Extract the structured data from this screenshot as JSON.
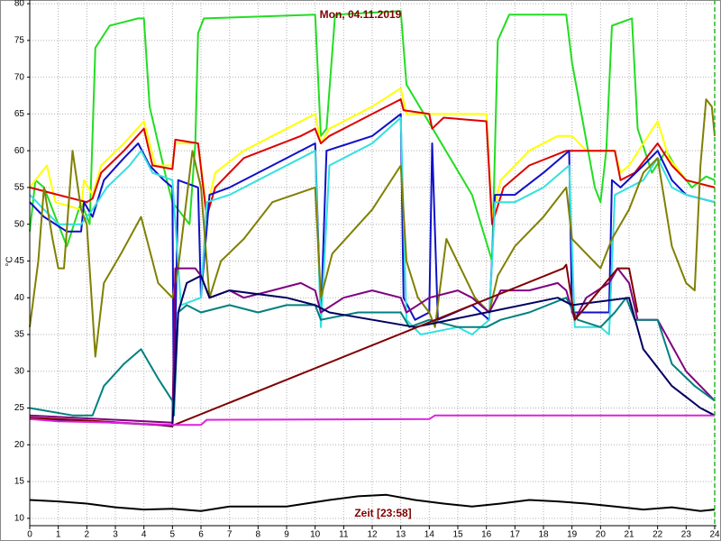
{
  "chart_data": {
    "type": "line",
    "title": "Mon, 04.11.2019",
    "y_label": "°C",
    "annotation": "Zeit [23:58]",
    "xlim": [
      0,
      24
    ],
    "xticks": [
      0,
      1,
      2,
      3,
      4,
      5,
      6,
      7,
      8,
      9,
      10,
      11,
      12,
      13,
      14,
      15,
      16,
      17,
      18,
      19,
      20,
      21,
      22,
      23,
      24
    ],
    "ylim": [
      9,
      80.5
    ],
    "yticks": [
      10,
      15,
      20,
      25,
      30,
      35,
      40,
      45,
      50,
      55,
      60,
      65,
      70,
      75,
      80
    ],
    "grid": true,
    "end_marker_color": "#22bb22",
    "series": [
      {
        "color": "#22dd22",
        "x": [
          0,
          0.2,
          0.5,
          1.3,
          1.8,
          2.1,
          2.3,
          2.8,
          3.8,
          4.0,
          4.2,
          4.8,
          5.0,
          5.6,
          5.8,
          5.9,
          6.1,
          10.0,
          10.2,
          10.4,
          10.7,
          13.0,
          13.2,
          15.5,
          16.2,
          16.4,
          16.8,
          18.8,
          19.0,
          19.8,
          20.0,
          20.2,
          20.4,
          21.1,
          21.3,
          21.8,
          22.3,
          22.6,
          23.2,
          23.7,
          24
        ],
        "values": [
          49,
          56,
          55,
          47,
          53,
          50,
          74,
          77,
          78,
          78,
          66,
          56,
          53,
          50,
          61,
          76,
          78,
          78.5,
          62,
          63,
          78.5,
          79,
          69,
          54,
          45,
          75,
          78.5,
          78.5,
          72,
          55,
          53,
          60,
          77,
          78,
          63,
          57,
          60,
          58,
          55,
          56.5,
          56
        ]
      },
      {
        "color": "#ffff00",
        "x": [
          0,
          0.6,
          0.9,
          1.8,
          1.9,
          2.2,
          2.5,
          3.3,
          4.0,
          4.4,
          5.0,
          5.1,
          5.9,
          6.2,
          6.5,
          7.5,
          9,
          10,
          10.2,
          10.5,
          12,
          13,
          13.2,
          16.0,
          16.2,
          16.5,
          17.5,
          18.5,
          19.0,
          19.5,
          20.5,
          20.7,
          21,
          22.0,
          22.4,
          23,
          24
        ],
        "values": [
          55,
          58,
          53,
          52,
          56,
          54,
          58,
          61,
          64,
          58,
          58,
          61,
          61,
          52,
          57,
          60,
          63,
          65,
          61,
          63,
          66,
          68.5,
          65,
          65,
          51,
          56,
          60,
          62,
          62,
          60,
          60,
          57,
          58,
          64,
          59,
          56,
          55
        ]
      },
      {
        "color": "#dd0000",
        "x": [
          0,
          1,
          2,
          2.2,
          2.5,
          3.3,
          4.0,
          4.3,
          5.0,
          5.1,
          5.9,
          6.2,
          6.5,
          7.5,
          9.5,
          10.0,
          10.2,
          10.5,
          12.0,
          13.0,
          13.1,
          14.0,
          14.1,
          14.5,
          16.0,
          16.2,
          16.6,
          17.5,
          18.8,
          19.2,
          20.5,
          20.7,
          21.2,
          22.0,
          22.5,
          23,
          24
        ],
        "values": [
          55,
          54,
          53,
          53.5,
          57,
          60,
          63,
          58,
          57.5,
          61.5,
          61,
          51,
          55,
          59,
          62,
          63,
          61,
          62,
          65,
          67,
          65.5,
          65,
          63,
          64.5,
          64,
          50,
          55,
          58,
          60,
          60,
          60,
          56,
          57,
          61,
          58,
          56,
          55
        ]
      },
      {
        "color": "#1010c8",
        "x": [
          0,
          0.5,
          1.3,
          1.8,
          1.9,
          2.2,
          2.6,
          3.3,
          3.8,
          4.2,
          4.7,
          5.0,
          5.05,
          5.2,
          5.9,
          6.0,
          6.3,
          7.0,
          8.5,
          10.0,
          10.2,
          10.4,
          12,
          13.0,
          13.1,
          13.5,
          14.0,
          14.1,
          14.3,
          15.5,
          16.1,
          16.3,
          17,
          18,
          18.9,
          19.0,
          20.3,
          20.4,
          20.7,
          21.5,
          22.0,
          22.5,
          23,
          24
        ],
        "values": [
          53,
          51,
          49,
          49,
          53,
          51,
          56,
          59,
          61,
          58,
          56,
          55,
          24,
          56,
          55,
          40,
          54,
          55,
          58,
          61,
          37,
          60,
          62,
          65,
          40,
          37,
          38,
          61,
          37,
          39,
          37,
          54,
          54,
          57,
          60,
          38,
          38,
          56,
          55,
          58,
          60,
          56,
          54,
          53
        ]
      },
      {
        "color": "#33e0e0",
        "x": [
          0,
          1,
          1.8,
          2.2,
          2.7,
          3.5,
          3.9,
          4.3,
          5.0,
          5.3,
          6.0,
          6.2,
          7,
          8.5,
          10.0,
          10.2,
          10.5,
          12,
          13.0,
          13.2,
          13.7,
          15.0,
          15.5,
          16.1,
          16.3,
          17,
          18,
          18.9,
          19.1,
          20,
          20.3,
          20.5,
          21.5,
          22,
          22.5,
          23,
          24
        ],
        "values": [
          54,
          50,
          50,
          52,
          55,
          58,
          60,
          57,
          56,
          39,
          40,
          53,
          54,
          57,
          60,
          36,
          58,
          61,
          64.5,
          37,
          35,
          36,
          35,
          37,
          53,
          53,
          55,
          58,
          36,
          36,
          35,
          54,
          56,
          59,
          55,
          54,
          53
        ]
      },
      {
        "color": "#808000",
        "x": [
          0,
          0.3,
          0.5,
          0.8,
          1.0,
          1.2,
          1.5,
          1.8,
          2.0,
          2.3,
          2.6,
          3.2,
          3.9,
          4.5,
          5.0,
          5.2,
          5.7,
          6.0,
          6.3,
          6.7,
          7.5,
          8.5,
          10.0,
          10.2,
          10.6,
          12,
          13.0,
          13.2,
          13.6,
          14.0,
          14.2,
          14.6,
          15.1,
          15.6,
          16.1,
          16.4,
          17,
          18,
          18.8,
          19.0,
          20,
          20.4,
          21.0,
          21.5,
          22,
          22.5,
          23,
          23.3,
          23.5,
          23.7,
          23.9,
          24
        ],
        "values": [
          36,
          45,
          55,
          48,
          44,
          44,
          60,
          52,
          50,
          32,
          42,
          46,
          51,
          42,
          40,
          44,
          60,
          55,
          40,
          45,
          48,
          53,
          55,
          40,
          46,
          52,
          58,
          45,
          40,
          38,
          36,
          48,
          44,
          40,
          38,
          43,
          47,
          51,
          55,
          48,
          44,
          48,
          52,
          57,
          59,
          47,
          42,
          41,
          58,
          67,
          66,
          62
        ]
      },
      {
        "color": "#800080",
        "x": [
          0,
          2,
          5.0,
          5.1,
          5.8,
          6,
          6.3,
          7,
          7.5,
          8.5,
          9.5,
          10.0,
          10.2,
          11,
          12,
          13,
          13.2,
          14,
          15,
          15.5,
          16.1,
          16.5,
          17.5,
          18.5,
          18.8,
          19.1,
          19.5,
          20.3,
          20.6,
          21.0,
          21.3,
          22,
          23,
          24
        ],
        "values": [
          24,
          23.6,
          23,
          44,
          44,
          43,
          40,
          41,
          40,
          41,
          42,
          41,
          38,
          40,
          41,
          40,
          38,
          40,
          41,
          40,
          38,
          41,
          41,
          42,
          41,
          37,
          40,
          42,
          44,
          42,
          37,
          37,
          30,
          26
        ]
      },
      {
        "color": "#008080",
        "x": [
          0,
          1.5,
          2.2,
          2.6,
          3.3,
          3.9,
          4.5,
          5.0,
          5.05,
          5.2,
          5.5,
          6,
          7,
          8,
          9,
          10,
          10.2,
          11.5,
          13,
          13.3,
          14,
          15,
          16,
          16.5,
          17.5,
          18.8,
          19.2,
          20,
          20.5,
          20.9,
          21.2,
          22,
          22.5,
          23.3,
          24
        ],
        "values": [
          25,
          24,
          24,
          28,
          31,
          33,
          29,
          26,
          24,
          38,
          39,
          38,
          39,
          38,
          39,
          39,
          37,
          38,
          38,
          36,
          37,
          36,
          36,
          37,
          38,
          40,
          37,
          36,
          38,
          40,
          37,
          37,
          31,
          28,
          26
        ]
      },
      {
        "color": "#000060",
        "x": [
          0,
          2,
          4.5,
          5.0,
          5.2,
          5.5,
          6,
          6.3,
          7,
          9,
          10,
          10.5,
          13.5,
          16,
          18.5,
          19,
          21,
          21.5,
          22.5,
          23.5,
          24
        ],
        "values": [
          23.5,
          23.2,
          22.7,
          22.5,
          38,
          42,
          43,
          40,
          41,
          40,
          39,
          38,
          36,
          38,
          40,
          39,
          40,
          33,
          28,
          25,
          24
        ]
      },
      {
        "color": "#800000",
        "x": [
          0,
          2,
          5.0,
          18.7,
          18.8,
          19.1,
          20.6,
          21,
          21.3
        ],
        "values": [
          23.7,
          23.3,
          22.6,
          44,
          44.5,
          37,
          44,
          44,
          38
        ]
      },
      {
        "color": "#dd22dd",
        "x": [
          0,
          1,
          3,
          5,
          6,
          6.2,
          14,
          14.2,
          24
        ],
        "values": [
          23.5,
          23.2,
          23,
          22.7,
          22.7,
          23.4,
          23.5,
          24,
          24
        ]
      },
      {
        "color": "#000000",
        "x": [
          0,
          1,
          2,
          3,
          4,
          5,
          6,
          7,
          9,
          10.5,
          11.5,
          12.5,
          13.5,
          14.5,
          15.5,
          16.5,
          17.5,
          18.5,
          19.5,
          20.5,
          21.5,
          22.5,
          23.5,
          24
        ],
        "values": [
          12.5,
          12.3,
          12,
          11.5,
          11.2,
          11.3,
          11,
          11.6,
          11.6,
          12.5,
          13,
          13.2,
          12.5,
          12,
          11.6,
          12,
          12.5,
          12.3,
          12,
          11.6,
          11.2,
          11.5,
          11,
          11.2
        ]
      }
    ]
  }
}
